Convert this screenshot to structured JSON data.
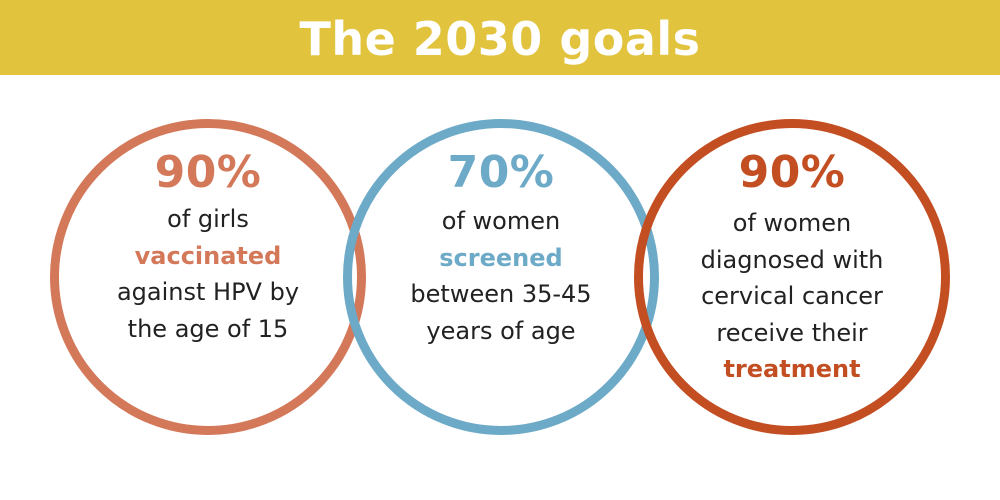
{
  "header": {
    "title": "The 2030 goals"
  },
  "colors": {
    "banner": "#E1C33D",
    "vaccinated": "#D4785A",
    "screened": "#6DAAC7",
    "treatment": "#C34E22",
    "text": "#222222"
  },
  "goals": [
    {
      "percent": "90%",
      "line1": "of girls",
      "highlight": "vaccinated",
      "line3": "against HPV by",
      "line4": "the age of 15",
      "color": "#D4785A"
    },
    {
      "percent": "70%",
      "line1": "of women",
      "highlight": "screened",
      "line3": "between 35-45",
      "line4": "years of age",
      "color": "#6DAAC7"
    },
    {
      "percent": "90%",
      "line1": "of women",
      "line2": "diagnosed with",
      "line3": "cervical cancer",
      "line4": "receive their",
      "highlight": "treatment",
      "color": "#C34E22"
    }
  ]
}
